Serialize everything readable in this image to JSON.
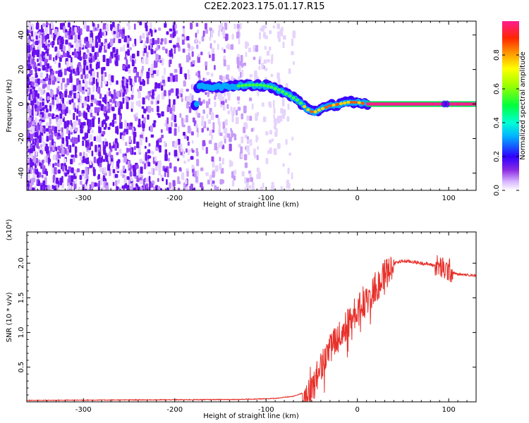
{
  "title": "C2E2.2023.175.01.17.R15",
  "chart_data": [
    {
      "type": "heatmap",
      "xlabel": "Height of straight line (km)",
      "ylabel": "Frequency (Hz)",
      "xlim": [
        -362,
        130
      ],
      "ylim": [
        -50,
        48
      ],
      "xticks": [
        -300,
        -200,
        -100,
        0,
        100
      ],
      "yticks": [
        -40,
        -20,
        0,
        20,
        40
      ],
      "colorbar": {
        "label": "Normalized spectral amplitude",
        "ticks": [
          "0.0",
          "0.2",
          "0.4",
          "0.6",
          "0.8"
        ],
        "range": [
          0,
          1
        ]
      },
      "ridge": {
        "x": [
          -175,
          -160,
          -140,
          -120,
          -105,
          -95,
          -85,
          -75,
          -65,
          -55,
          -48,
          -40,
          -30,
          -20,
          -10,
          0,
          10,
          130
        ],
        "y": [
          10,
          10,
          10,
          11,
          11,
          10,
          8,
          5,
          2,
          -3,
          -5,
          -3,
          -1,
          0,
          1,
          1,
          0,
          0
        ]
      },
      "noise_region": [
        -362,
        -110
      ],
      "grid": false
    },
    {
      "type": "line",
      "xlabel": "Height of straight line (km)",
      "ylabel": "SNR (10 * v/v)",
      "y_multiplier": "(x10^4)",
      "xlim": [
        -362,
        130
      ],
      "ylim": [
        0,
        24500
      ],
      "xticks": [
        -300,
        -200,
        -100,
        0,
        100
      ],
      "yticks": [
        5000,
        10000,
        15000,
        20000
      ],
      "ytick_labels": [
        "0.5",
        "1.0",
        "1.5",
        "2.0"
      ],
      "series": [
        {
          "color": "#e8302a",
          "x": [
            -362,
            -300,
            -200,
            -130,
            -110,
            -90,
            -70,
            -55,
            -45,
            -40,
            -35,
            -30,
            -20,
            -10,
            -5,
            0,
            10,
            20,
            30,
            40,
            50,
            60,
            70,
            80,
            90,
            95,
            100,
            105,
            110,
            120,
            130
          ],
          "y": [
            200,
            250,
            300,
            350,
            400,
            500,
            800,
            1500,
            3500,
            6000,
            7000,
            8500,
            10000,
            12000,
            13000,
            14000,
            15000,
            17000,
            19000,
            20000,
            20300,
            20200,
            20000,
            19800,
            19500,
            19000,
            19000,
            18600,
            18400,
            18300,
            18200
          ]
        }
      ],
      "grid": false
    }
  ]
}
